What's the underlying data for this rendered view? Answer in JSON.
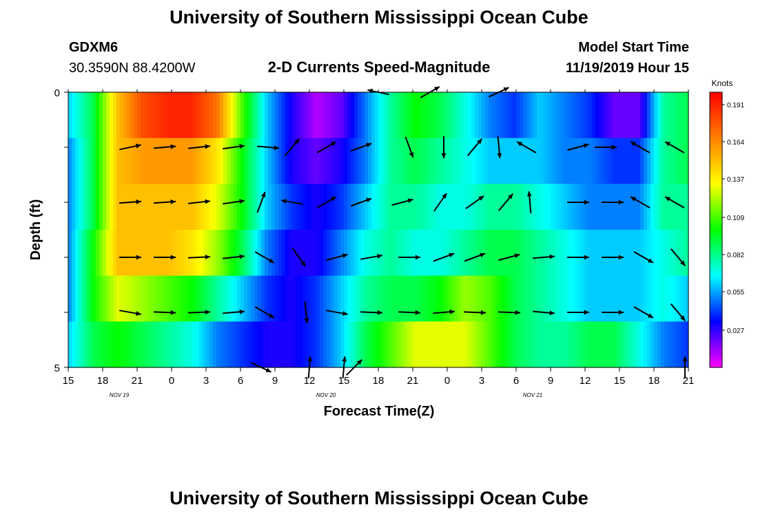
{
  "header": {
    "title": "University of Southern Mississippi Ocean Cube",
    "station_id": "GDXM6",
    "station_coords": "30.3590N 88.4200W",
    "subtitle": "2-D Currents Speed-Magnitude",
    "model_label": "Model Start Time",
    "model_time": "11/19/2019 Hour 15"
  },
  "footer": {
    "title": "University of Southern Mississippi Ocean Cube"
  },
  "chart_data": {
    "type": "heatmap",
    "title": "2-D Currents Speed-Magnitude",
    "xlabel": "Forecast Time(Z)",
    "ylabel": "Depth (ft)",
    "x_ticks": [
      "15",
      "18",
      "21",
      "0",
      "3",
      "6",
      "9",
      "12",
      "15",
      "18",
      "21",
      "0",
      "3",
      "6",
      "9",
      "12",
      "15",
      "18",
      "21"
    ],
    "date_labels": [
      {
        "label": "NOV  19",
        "tick_index": 1
      },
      {
        "label": "NOV  20",
        "tick_index": 7
      },
      {
        "label": "NOV  21",
        "tick_index": 13
      }
    ],
    "y_ticks": [
      "0",
      "5"
    ],
    "ylim": [
      0,
      5
    ],
    "colorbar": {
      "unit": "Knots",
      "ticks": [
        "0.191",
        "0.164",
        "0.137",
        "0.109",
        "0.082",
        "0.055",
        "0.027"
      ],
      "range": [
        0.0,
        0.2
      ],
      "colors": [
        "#ff00ff",
        "#0000ff",
        "#00ffff",
        "#00ff00",
        "#ffff00",
        "#ff8000",
        "#ff0000"
      ]
    },
    "speed_rows_knots": [
      [
        0.06,
        0.09,
        0.15,
        0.18,
        0.19,
        0.19,
        0.17,
        0.11,
        0.06,
        0.03,
        0.01,
        0.02,
        0.05,
        0.08,
        0.1,
        0.09,
        0.07,
        0.05,
        0.04,
        0.06,
        0.05,
        0.04,
        0.02,
        0.02,
        0.08,
        0.09
      ],
      [
        0.05,
        0.09,
        0.15,
        0.16,
        0.16,
        0.16,
        0.14,
        0.1,
        0.06,
        0.03,
        0.02,
        0.03,
        0.05,
        0.08,
        0.09,
        0.08,
        0.07,
        0.06,
        0.06,
        0.06,
        0.05,
        0.05,
        0.04,
        0.04,
        0.08,
        0.09
      ],
      [
        0.05,
        0.09,
        0.15,
        0.15,
        0.15,
        0.15,
        0.13,
        0.1,
        0.06,
        0.04,
        0.03,
        0.04,
        0.06,
        0.08,
        0.08,
        0.07,
        0.07,
        0.08,
        0.08,
        0.07,
        0.06,
        0.05,
        0.05,
        0.05,
        0.08,
        0.08
      ],
      [
        0.05,
        0.1,
        0.15,
        0.15,
        0.15,
        0.14,
        0.12,
        0.09,
        0.05,
        0.03,
        0.03,
        0.05,
        0.07,
        0.08,
        0.07,
        0.07,
        0.08,
        0.09,
        0.09,
        0.08,
        0.07,
        0.06,
        0.06,
        0.06,
        0.07,
        0.08
      ],
      [
        0.05,
        0.1,
        0.13,
        0.12,
        0.11,
        0.1,
        0.08,
        0.06,
        0.04,
        0.03,
        0.04,
        0.06,
        0.08,
        0.09,
        0.09,
        0.1,
        0.12,
        0.11,
        0.09,
        0.08,
        0.07,
        0.06,
        0.06,
        0.06,
        0.07,
        0.06
      ],
      [
        0.06,
        0.09,
        0.1,
        0.09,
        0.08,
        0.07,
        0.05,
        0.04,
        0.03,
        0.03,
        0.04,
        0.06,
        0.09,
        0.11,
        0.13,
        0.13,
        0.13,
        0.11,
        0.09,
        0.08,
        0.08,
        0.09,
        0.09,
        0.07,
        0.05,
        0.04
      ]
    ],
    "vectors": [
      {
        "tick": 9.0,
        "depth": 0.0,
        "dir_deg": 282
      },
      {
        "tick": 10.5,
        "depth": 0.0,
        "dir_deg": 60
      },
      {
        "tick": 12.5,
        "depth": 0.0,
        "dir_deg": 65
      },
      {
        "tick": 1.8,
        "depth": 1.0,
        "dir_deg": 78
      },
      {
        "tick": 2.8,
        "depth": 1.0,
        "dir_deg": 85
      },
      {
        "tick": 3.8,
        "depth": 1.0,
        "dir_deg": 84
      },
      {
        "tick": 4.8,
        "depth": 1.0,
        "dir_deg": 82
      },
      {
        "tick": 5.8,
        "depth": 1.0,
        "dir_deg": 95
      },
      {
        "tick": 6.5,
        "depth": 1.0,
        "dir_deg": 40
      },
      {
        "tick": 7.5,
        "depth": 1.0,
        "dir_deg": 60
      },
      {
        "tick": 8.5,
        "depth": 1.0,
        "dir_deg": 70
      },
      {
        "tick": 9.9,
        "depth": 1.0,
        "dir_deg": 160
      },
      {
        "tick": 10.9,
        "depth": 1.0,
        "dir_deg": 180
      },
      {
        "tick": 11.8,
        "depth": 1.0,
        "dir_deg": 40
      },
      {
        "tick": 12.5,
        "depth": 1.0,
        "dir_deg": 175
      },
      {
        "tick": 13.3,
        "depth": 1.0,
        "dir_deg": 300
      },
      {
        "tick": 14.8,
        "depth": 1.0,
        "dir_deg": 75
      },
      {
        "tick": 15.6,
        "depth": 1.0,
        "dir_deg": 90
      },
      {
        "tick": 16.6,
        "depth": 1.0,
        "dir_deg": 300
      },
      {
        "tick": 17.6,
        "depth": 1.0,
        "dir_deg": 300
      },
      {
        "tick": 1.8,
        "depth": 2.0,
        "dir_deg": 86
      },
      {
        "tick": 2.8,
        "depth": 2.0,
        "dir_deg": 86
      },
      {
        "tick": 3.8,
        "depth": 2.0,
        "dir_deg": 84
      },
      {
        "tick": 4.8,
        "depth": 2.0,
        "dir_deg": 82
      },
      {
        "tick": 5.6,
        "depth": 2.0,
        "dir_deg": 20
      },
      {
        "tick": 6.5,
        "depth": 2.0,
        "dir_deg": 280
      },
      {
        "tick": 7.5,
        "depth": 2.0,
        "dir_deg": 60
      },
      {
        "tick": 8.5,
        "depth": 2.0,
        "dir_deg": 70
      },
      {
        "tick": 9.7,
        "depth": 2.0,
        "dir_deg": 75
      },
      {
        "tick": 10.8,
        "depth": 2.0,
        "dir_deg": 35
      },
      {
        "tick": 11.8,
        "depth": 2.0,
        "dir_deg": 55
      },
      {
        "tick": 12.7,
        "depth": 2.0,
        "dir_deg": 40
      },
      {
        "tick": 13.4,
        "depth": 2.0,
        "dir_deg": 355
      },
      {
        "tick": 14.8,
        "depth": 2.0,
        "dir_deg": 90
      },
      {
        "tick": 15.8,
        "depth": 2.0,
        "dir_deg": 90
      },
      {
        "tick": 16.6,
        "depth": 2.0,
        "dir_deg": 300
      },
      {
        "tick": 17.6,
        "depth": 2.0,
        "dir_deg": 300
      },
      {
        "tick": 1.8,
        "depth": 3.0,
        "dir_deg": 90
      },
      {
        "tick": 2.8,
        "depth": 3.0,
        "dir_deg": 90
      },
      {
        "tick": 3.8,
        "depth": 3.0,
        "dir_deg": 87
      },
      {
        "tick": 4.8,
        "depth": 3.0,
        "dir_deg": 84
      },
      {
        "tick": 5.7,
        "depth": 3.0,
        "dir_deg": 120
      },
      {
        "tick": 6.7,
        "depth": 3.0,
        "dir_deg": 145
      },
      {
        "tick": 7.8,
        "depth": 3.0,
        "dir_deg": 75
      },
      {
        "tick": 8.8,
        "depth": 3.0,
        "dir_deg": 80
      },
      {
        "tick": 9.9,
        "depth": 3.0,
        "dir_deg": 90
      },
      {
        "tick": 10.9,
        "depth": 3.0,
        "dir_deg": 70
      },
      {
        "tick": 11.8,
        "depth": 3.0,
        "dir_deg": 70
      },
      {
        "tick": 12.8,
        "depth": 3.0,
        "dir_deg": 75
      },
      {
        "tick": 13.8,
        "depth": 3.0,
        "dir_deg": 85
      },
      {
        "tick": 14.8,
        "depth": 3.0,
        "dir_deg": 90
      },
      {
        "tick": 15.8,
        "depth": 3.0,
        "dir_deg": 90
      },
      {
        "tick": 16.7,
        "depth": 3.0,
        "dir_deg": 120
      },
      {
        "tick": 17.7,
        "depth": 3.0,
        "dir_deg": 140
      },
      {
        "tick": 1.8,
        "depth": 4.0,
        "dir_deg": 100
      },
      {
        "tick": 2.8,
        "depth": 4.0,
        "dir_deg": 92
      },
      {
        "tick": 3.8,
        "depth": 4.0,
        "dir_deg": 88
      },
      {
        "tick": 4.8,
        "depth": 4.0,
        "dir_deg": 85
      },
      {
        "tick": 5.7,
        "depth": 4.0,
        "dir_deg": 120
      },
      {
        "tick": 6.9,
        "depth": 4.0,
        "dir_deg": 175
      },
      {
        "tick": 7.8,
        "depth": 4.0,
        "dir_deg": 100
      },
      {
        "tick": 8.8,
        "depth": 4.0,
        "dir_deg": 92
      },
      {
        "tick": 9.9,
        "depth": 4.0,
        "dir_deg": 92
      },
      {
        "tick": 10.9,
        "depth": 4.0,
        "dir_deg": 85
      },
      {
        "tick": 11.8,
        "depth": 4.0,
        "dir_deg": 92
      },
      {
        "tick": 12.8,
        "depth": 4.0,
        "dir_deg": 92
      },
      {
        "tick": 13.8,
        "depth": 4.0,
        "dir_deg": 95
      },
      {
        "tick": 14.8,
        "depth": 4.0,
        "dir_deg": 90
      },
      {
        "tick": 15.8,
        "depth": 4.0,
        "dir_deg": 90
      },
      {
        "tick": 16.7,
        "depth": 4.0,
        "dir_deg": 120
      },
      {
        "tick": 17.7,
        "depth": 4.0,
        "dir_deg": 140
      },
      {
        "tick": 5.6,
        "depth": 5.0,
        "dir_deg": 115
      },
      {
        "tick": 7.0,
        "depth": 5.0,
        "dir_deg": 5
      },
      {
        "tick": 8.0,
        "depth": 5.0,
        "dir_deg": 5
      },
      {
        "tick": 8.3,
        "depth": 5.0,
        "dir_deg": 45
      },
      {
        "tick": 17.9,
        "depth": 5.0,
        "dir_deg": 0
      }
    ]
  }
}
